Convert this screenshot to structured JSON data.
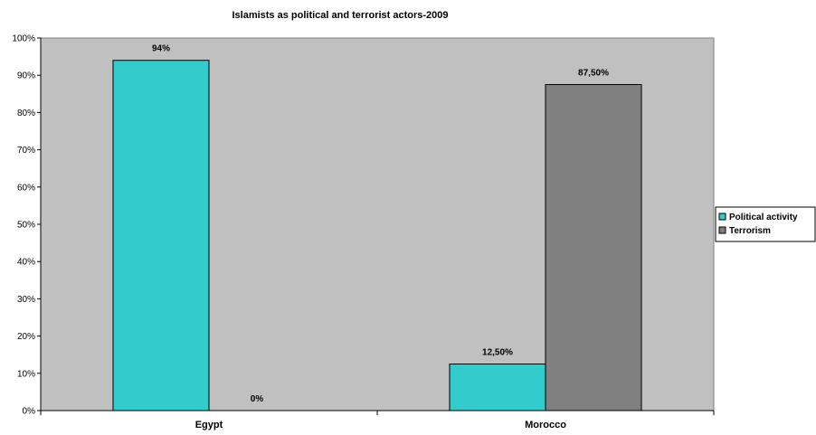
{
  "chart_data": {
    "type": "bar",
    "title": "Islamists as political and terrorist actors-2009",
    "categories": [
      "Egypt",
      "Morocco"
    ],
    "series": [
      {
        "name": "Political activity",
        "values": [
          94,
          12.5
        ],
        "labels": [
          "94%",
          "12,50%"
        ],
        "color": "#33CCCC"
      },
      {
        "name": "Terrorism",
        "values": [
          0,
          87.5
        ],
        "labels": [
          "0%",
          "87,50%"
        ],
        "color": "#808080"
      }
    ],
    "yticks": [
      "0%",
      "10%",
      "20%",
      "30%",
      "40%",
      "50%",
      "60%",
      "70%",
      "80%",
      "90%",
      "100%"
    ],
    "ylim": [
      0,
      100
    ],
    "plot_background": "#C0C0C0",
    "legend_position": "right",
    "grid": false
  }
}
